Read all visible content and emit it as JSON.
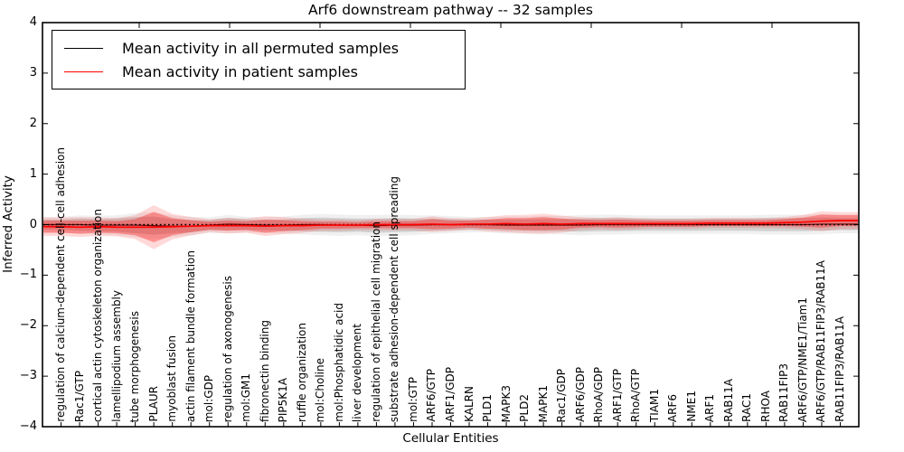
{
  "title": "Arf6 downstream pathway -- 32 samples",
  "axes": {
    "ylabel": "Inferred Activity",
    "xlabel": "Cellular Entities",
    "ytick_labels": [
      "4",
      "3",
      "2",
      "1",
      "0",
      "−1",
      "−2",
      "−3",
      "−4"
    ]
  },
  "legend": {
    "items": [
      {
        "label": "Mean activity in all permuted samples",
        "color": "#000000"
      },
      {
        "label": "Mean activity in patient samples",
        "color": "#ff0000"
      }
    ]
  },
  "chart_data": {
    "type": "line",
    "title": "Arf6 downstream pathway -- 32 samples",
    "xlabel": "Cellular Entities",
    "ylabel": "Inferred Activity",
    "ylim": [
      -4,
      4
    ],
    "yticks": [
      4,
      3,
      2,
      1,
      0,
      -1,
      -2,
      -3,
      -4
    ],
    "grid": false,
    "legend_position": "upper left",
    "zero_line": {
      "y": 0,
      "style": "dotted",
      "color": "#000000"
    },
    "categories": [
      "regulation of calcium-dependent cell-cell adhesion",
      "Rac1/GTP",
      "cortical actin cytoskeleton organization",
      "lamellipodium assembly",
      "tube morphogenesis",
      "PLAUR",
      "myoblast fusion",
      "actin filament bundle formation",
      "mol:GDP",
      "regulation of axonogenesis",
      "mol:GM1",
      "fibronectin binding",
      "PIP5K1A",
      "ruffle organization",
      "mol:Choline",
      "mol:Phosphatidic acid",
      "liver development",
      "regulation of epithelial cell migration",
      "substrate adhesion-dependent cell spreading",
      "mol:GTP",
      "ARF6/GTP",
      "ARF1/GDP",
      "KALRN",
      "PLD1",
      "MAPK3",
      "PLD2",
      "MAPK1",
      "Rac1/GDP",
      "ARF6/GDP",
      "RhoA/GDP",
      "ARF1/GTP",
      "RhoA/GTP",
      "TIAM1",
      "ARF6",
      "NME1",
      "ARF1",
      "RAB11A",
      "RAC1",
      "RHOA",
      "RAB11FIP3",
      "ARF6/GTP/NME1/Tiam1",
      "ARF6/GTP/RAB11FIP3/RAB11A",
      "RAB11FIP3/RAB11A"
    ],
    "series": [
      {
        "name": "Mean activity in all permuted samples",
        "color": "#000000",
        "band_fill": "rgba(0,0,0,0.13)",
        "band_fill_outer": "rgba(0,0,0,0.06)",
        "values": [
          0.0,
          0.0,
          -0.01,
          -0.01,
          -0.01,
          -0.02,
          -0.03,
          -0.03,
          -0.01,
          0.01,
          0.0,
          -0.01,
          -0.01,
          0.0,
          0.0,
          -0.01,
          -0.01,
          -0.02,
          -0.01,
          -0.01,
          0.0,
          0.0,
          0.0,
          0.0,
          -0.01,
          -0.01,
          -0.01,
          -0.01,
          -0.01,
          0.0,
          0.0,
          0.0,
          0.0,
          0.0,
          0.0,
          0.0,
          0.0,
          0.0,
          0.0,
          0.0,
          0.0,
          0.01,
          0.01
        ],
        "band_halfwidth": [
          0.1,
          0.12,
          0.12,
          0.13,
          0.16,
          0.18,
          0.14,
          0.12,
          0.1,
          0.12,
          0.1,
          0.1,
          0.11,
          0.13,
          0.14,
          0.14,
          0.13,
          0.14,
          0.14,
          0.13,
          0.12,
          0.11,
          0.1,
          0.1,
          0.11,
          0.11,
          0.12,
          0.12,
          0.13,
          0.13,
          0.13,
          0.12,
          0.12,
          0.12,
          0.12,
          0.12,
          0.12,
          0.12,
          0.13,
          0.13,
          0.13,
          0.13,
          0.12
        ]
      },
      {
        "name": "Mean activity in patient samples",
        "color": "#ff0000",
        "band_fill": "rgba(255,0,0,0.33)",
        "band_fill_outer": "rgba(255,0,0,0.15)",
        "values": [
          -0.04,
          -0.05,
          -0.04,
          -0.05,
          -0.05,
          -0.05,
          -0.04,
          -0.03,
          -0.02,
          -0.02,
          -0.02,
          -0.03,
          -0.02,
          -0.02,
          -0.01,
          -0.01,
          -0.01,
          0.0,
          0.0,
          0.0,
          0.01,
          0.0,
          0.01,
          0.01,
          0.02,
          0.01,
          0.02,
          0.01,
          0.02,
          0.02,
          0.02,
          0.02,
          0.02,
          0.02,
          0.02,
          0.03,
          0.03,
          0.03,
          0.03,
          0.04,
          0.05,
          0.07,
          0.08
        ],
        "band_halfwidth": [
          0.12,
          0.13,
          0.12,
          0.12,
          0.16,
          0.3,
          0.17,
          0.12,
          0.08,
          0.1,
          0.09,
          0.13,
          0.11,
          0.09,
          0.07,
          0.07,
          0.06,
          0.07,
          0.07,
          0.07,
          0.1,
          0.08,
          0.07,
          0.09,
          0.11,
          0.12,
          0.13,
          0.11,
          0.08,
          0.07,
          0.08,
          0.07,
          0.06,
          0.06,
          0.06,
          0.06,
          0.06,
          0.06,
          0.06,
          0.07,
          0.09,
          0.13,
          0.11
        ]
      }
    ]
  }
}
